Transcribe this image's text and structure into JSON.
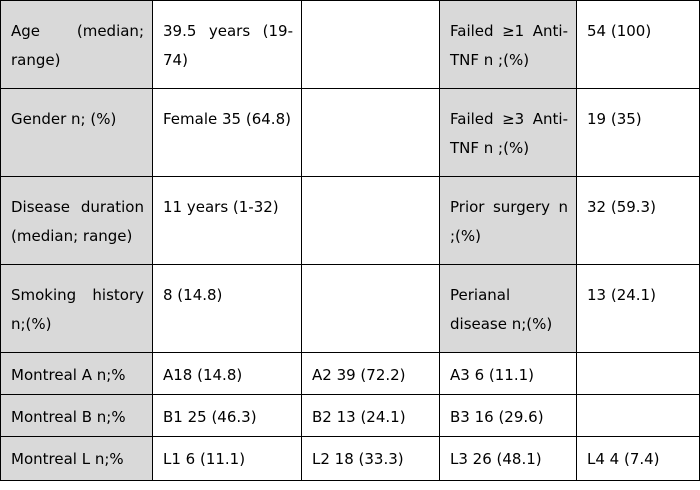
{
  "rows": [
    [
      {
        "text": "Age (median; range)",
        "label": true
      },
      {
        "text": "39.5 years (19-74)",
        "label": false
      },
      {
        "text": "",
        "label": false
      },
      {
        "text": "Failed ≥1 Anti-TNF n ;(%)",
        "label": true
      },
      {
        "text": "54 (100)",
        "label": false
      }
    ],
    [
      {
        "text": "Gender n; (%)",
        "label": true
      },
      {
        "text": "Female 35 (64.8)",
        "label": false
      },
      {
        "text": "",
        "label": false
      },
      {
        "text": "Failed ≥3 Anti-TNF n ;(%)",
        "label": true
      },
      {
        "text": "19 (35)",
        "label": false
      }
    ],
    [
      {
        "text": "Disease duration (median; range)",
        "label": true
      },
      {
        "text": "11 years (1-32)",
        "label": false
      },
      {
        "text": "",
        "label": false
      },
      {
        "text": "Prior surgery n ;(%)",
        "label": true
      },
      {
        "text": "32 (59.3)",
        "label": false
      }
    ],
    [
      {
        "text": "Smoking history n;(%)",
        "label": true
      },
      {
        "text": "8 (14.8)",
        "label": false
      },
      {
        "text": "",
        "label": false
      },
      {
        "text": "Perianal disease n;(%)",
        "label": true
      },
      {
        "text": "13 (24.1)",
        "label": false
      }
    ],
    [
      {
        "text": "Montreal A n;%",
        "label": true
      },
      {
        "text": "A18 (14.8)",
        "label": false
      },
      {
        "text": "A2 39 (72.2)",
        "label": false
      },
      {
        "text": "A3 6 (11.1)",
        "label": false
      },
      {
        "text": "",
        "label": false
      }
    ],
    [
      {
        "text": "Montreal B n;%",
        "label": true
      },
      {
        "text": "B1 25 (46.3)",
        "label": false
      },
      {
        "text": "B2 13 (24.1)",
        "label": false
      },
      {
        "text": "B3 16 (29.6)",
        "label": false
      },
      {
        "text": "",
        "label": false
      }
    ],
    [
      {
        "text": "Montreal L n;%",
        "label": true
      },
      {
        "text": "L1 6  (11.1)",
        "label": false
      },
      {
        "text": "L2 18 (33.3)",
        "label": false
      },
      {
        "text": "L3 26 (48.1)",
        "label": false
      },
      {
        "text": "L4 4 (7.4)",
        "label": false
      }
    ]
  ]
}
